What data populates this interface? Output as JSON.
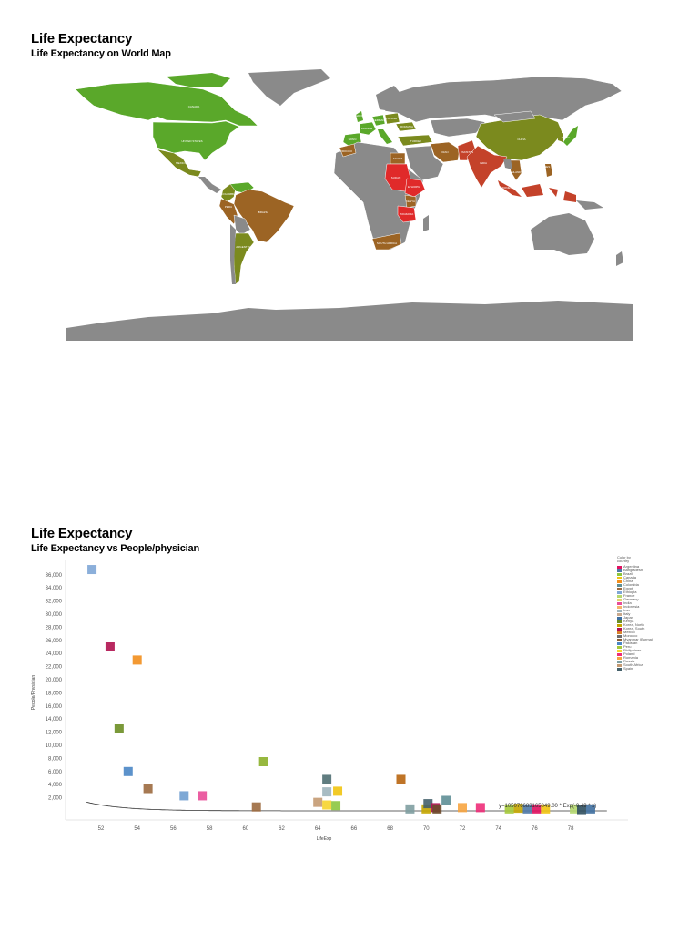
{
  "sections": [
    {
      "title": "Life Expectancy",
      "subtitle": "Life Expectancy on World Map"
    },
    {
      "title": "Life Expectancy",
      "subtitle": "Life Expectancy vs People/physician"
    }
  ],
  "map": {
    "colors": {
      "ocean": "#ffffff",
      "no_data": "#8a8a8a",
      "high": "#5aa82a",
      "upper_mid": "#7b8a1e",
      "mid": "#9c6424",
      "low_mid": "#c4422a",
      "low": "#e02a2a"
    },
    "labels": [
      "CANADA",
      "UNITED STATES",
      "MEXICO",
      "COLOMBIA",
      "PERU",
      "BRAZIL",
      "ARGENTINA",
      "UNITED KINGDOM",
      "FRANCE",
      "SPAIN",
      "GERMANY",
      "POLAND",
      "ROMANIA",
      "TURKEY",
      "MOROCCO",
      "EGYPT",
      "SUDAN",
      "ETHIOPIA",
      "KENYA",
      "TANZANIA",
      "SOUTH AFRICA",
      "IRAN",
      "PAKISTAN",
      "INDIA",
      "CHINA",
      "JAPAN",
      "THAILAND",
      "PHILIPPINES",
      "INDONESIA"
    ]
  },
  "legend": {
    "header_line1": "Color by",
    "header_line2": "country",
    "items": [
      {
        "label": "Argentina",
        "color": "#e0115f"
      },
      {
        "label": "Bangladesh",
        "color": "#4e79a7"
      },
      {
        "label": "Brazil",
        "color": "#8cc63f"
      },
      {
        "label": "Canada",
        "color": "#f1c40f"
      },
      {
        "label": "China",
        "color": "#f28e1c"
      },
      {
        "label": "Colombia",
        "color": "#5f8f96"
      },
      {
        "label": "Egypt",
        "color": "#9c6a3f"
      },
      {
        "label": "Ethiopia",
        "color": "#7ea6d6"
      },
      {
        "label": "France",
        "color": "#b5d86f"
      },
      {
        "label": "Germany",
        "color": "#e3d26f"
      },
      {
        "label": "India",
        "color": "#e94d98"
      },
      {
        "label": "Indonesia",
        "color": "#f5b36b"
      },
      {
        "label": "Iran",
        "color": "#9fb5bd"
      },
      {
        "label": "Italy",
        "color": "#c9a98d"
      },
      {
        "label": "Japan",
        "color": "#3f6fa0"
      },
      {
        "label": "Kenya",
        "color": "#6b8e23"
      },
      {
        "label": "Korea, North",
        "color": "#c5a600"
      },
      {
        "label": "Korea, South",
        "color": "#b0124f"
      },
      {
        "label": "Mexico",
        "color": "#d9822b"
      },
      {
        "label": "Morocco",
        "color": "#6d6d6d"
      },
      {
        "label": "Myanmar (Burma)",
        "color": "#8b5e34"
      },
      {
        "label": "Pakistan",
        "color": "#4a86c5"
      },
      {
        "label": "Peru",
        "color": "#a4c93a"
      },
      {
        "label": "Philippines",
        "color": "#f6d42b"
      },
      {
        "label": "Poland",
        "color": "#ee2d79"
      },
      {
        "label": "Romania",
        "color": "#f7a541"
      },
      {
        "label": "Russia",
        "color": "#7f9fa1"
      },
      {
        "label": "South Africa",
        "color": "#c49a72"
      },
      {
        "label": "Spain",
        "color": "#44606a"
      }
    ]
  },
  "chart_data": {
    "type": "scatter",
    "title": "Life Expectancy",
    "subtitle": "Life Expectancy vs People/physician",
    "xlabel": "LifeExp",
    "ylabel": "People/Physician",
    "xlim": [
      50.5,
      80
    ],
    "ylim": [
      0,
      37000
    ],
    "x_ticks": [
      52,
      54,
      56,
      58,
      60,
      62,
      64,
      66,
      68,
      70,
      72,
      74,
      76,
      78
    ],
    "y_ticks": [
      2000,
      4000,
      6000,
      8000,
      10000,
      12000,
      14000,
      16000,
      18000,
      20000,
      22000,
      24000,
      26000,
      28000,
      30000,
      32000,
      34000,
      36000
    ],
    "y_tick_labels": [
      "2,000",
      "4,000",
      "6,000",
      "8,000",
      "10,000",
      "12,000",
      "14,000",
      "16,000",
      "18,000",
      "20,000",
      "22,000",
      "24,000",
      "26,000",
      "28,000",
      "30,000",
      "32,000",
      "34,000",
      "36,000"
    ],
    "x_tick_labels": [
      "52",
      "54",
      "56",
      "58",
      "60",
      "62",
      "64",
      "66",
      "68",
      "70",
      "72",
      "74",
      "76",
      "78"
    ],
    "grid": false,
    "legend_position": "right",
    "trendline": {
      "type": "exponential",
      "label": "y=105076683165849.00 * Exp(-0.49 * x)",
      "a": 105076683165849.0,
      "b": -0.49
    },
    "points": [
      {
        "x": 51.5,
        "y": 36800,
        "color": "#7ea6d6"
      },
      {
        "x": 52.5,
        "y": 25000,
        "color": "#b0124f"
      },
      {
        "x": 54.0,
        "y": 23000,
        "color": "#f28e1c"
      },
      {
        "x": 53.0,
        "y": 12500,
        "color": "#6b8e23"
      },
      {
        "x": 53.5,
        "y": 6000,
        "color": "#4a86c5"
      },
      {
        "x": 54.6,
        "y": 3400,
        "color": "#9c6a3f"
      },
      {
        "x": 56.6,
        "y": 2300,
        "color": "#6f9fd0"
      },
      {
        "x": 57.6,
        "y": 2300,
        "color": "#e94d98"
      },
      {
        "x": 60.6,
        "y": 600,
        "color": "#9c6a3f"
      },
      {
        "x": 61.0,
        "y": 7500,
        "color": "#8cb02a"
      },
      {
        "x": 64.5,
        "y": 4800,
        "color": "#4f6f72"
      },
      {
        "x": 64.5,
        "y": 2900,
        "color": "#9fb5bd"
      },
      {
        "x": 65.1,
        "y": 3000,
        "color": "#f1c40f"
      },
      {
        "x": 64.0,
        "y": 1300,
        "color": "#c49a72"
      },
      {
        "x": 64.5,
        "y": 900,
        "color": "#f6d42b"
      },
      {
        "x": 65.0,
        "y": 800,
        "color": "#8cc63f"
      },
      {
        "x": 68.6,
        "y": 4800,
        "color": "#b8650f"
      },
      {
        "x": 69.1,
        "y": 300,
        "color": "#7f9fa1"
      },
      {
        "x": 70.0,
        "y": 300,
        "color": "#c5a600"
      },
      {
        "x": 70.1,
        "y": 1100,
        "color": "#44606a"
      },
      {
        "x": 70.5,
        "y": 500,
        "color": "#b0124f"
      },
      {
        "x": 70.6,
        "y": 300,
        "color": "#6b4a2a"
      },
      {
        "x": 71.1,
        "y": 1600,
        "color": "#5f8f96"
      },
      {
        "x": 72.0,
        "y": 500,
        "color": "#f7a541"
      },
      {
        "x": 73.0,
        "y": 500,
        "color": "#ee2d79"
      },
      {
        "x": 74.6,
        "y": 300,
        "color": "#a4c93a"
      },
      {
        "x": 75.1,
        "y": 400,
        "color": "#c5a600"
      },
      {
        "x": 75.6,
        "y": 300,
        "color": "#4e79a7"
      },
      {
        "x": 76.1,
        "y": 300,
        "color": "#e0115f"
      },
      {
        "x": 76.6,
        "y": 300,
        "color": "#f1c40f"
      },
      {
        "x": 78.2,
        "y": 300,
        "color": "#b5d86f"
      },
      {
        "x": 78.6,
        "y": 200,
        "color": "#2f4f5f"
      },
      {
        "x": 79.1,
        "y": 300,
        "color": "#3f6fa0"
      }
    ]
  }
}
